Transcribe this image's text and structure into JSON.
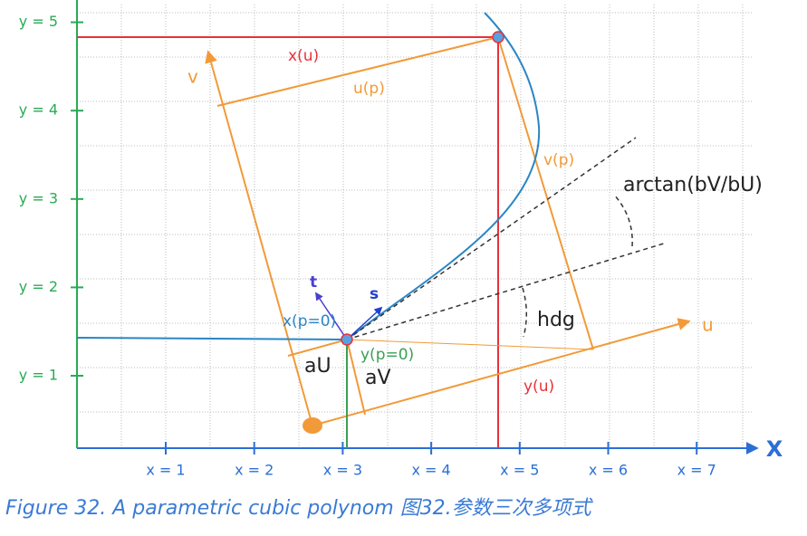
{
  "axes": {
    "x_label": "X",
    "x_ticks": [
      "x = 1",
      "x = 2",
      "x = 3",
      "x = 4",
      "x = 5",
      "x = 6",
      "x = 7"
    ],
    "y_ticks": [
      "y = 1",
      "y = 2",
      "y = 3",
      "y = 4",
      "y = 5"
    ]
  },
  "labels": {
    "v_axis": "v",
    "u_axis": "u",
    "u_p": "u(p)",
    "v_p": "v(p)",
    "x_u": "x(u)",
    "y_u": "y(u)",
    "arctan": "arctan(bV/bU)",
    "hdg": "hdg",
    "aU": "aU",
    "aV": "aV",
    "x_p0": "x(p=0)",
    "y_p0": "y(p=0)",
    "t": "t",
    "s": "s"
  },
  "caption": "Figure 32. A parametric cubic polynom 图32.参数三次多项式"
}
